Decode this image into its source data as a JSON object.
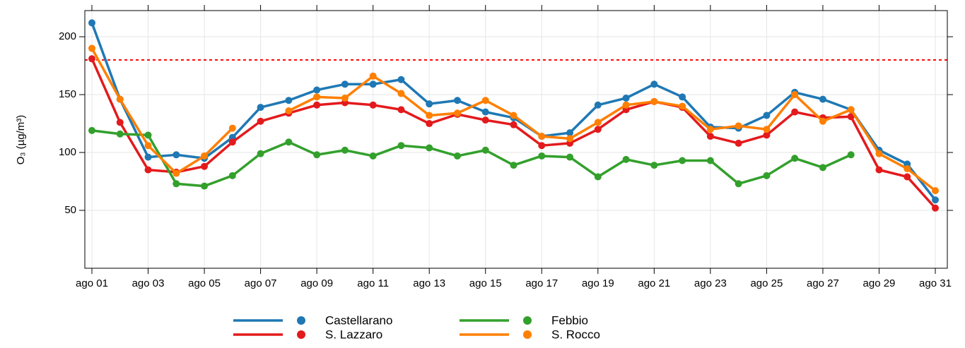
{
  "chart_data": {
    "type": "line",
    "ylabel": "O₃ (µg/m³)",
    "categories": [
      "ago 01",
      null,
      "ago 03",
      null,
      "ago 05",
      null,
      "ago 07",
      null,
      "ago 09",
      null,
      "ago 11",
      null,
      "ago 13",
      null,
      "ago 15",
      null,
      "ago 17",
      null,
      "ago 19",
      null,
      "ago 21",
      null,
      "ago 23",
      null,
      "ago 25",
      null,
      "ago 27",
      null,
      "ago 29",
      null,
      "ago 31"
    ],
    "series": [
      {
        "name": "Castellarano",
        "color": "#1f78b4",
        "values": [
          212,
          146,
          96,
          98,
          95,
          113,
          139,
          145,
          154,
          159,
          159,
          163,
          142,
          145,
          135,
          130,
          114,
          117,
          141,
          147,
          159,
          148,
          122,
          121,
          132,
          152,
          146,
          137,
          102,
          90,
          59
        ]
      },
      {
        "name": "S. Lazzaro",
        "color": "#e31a1c",
        "values": [
          181,
          126,
          85,
          83,
          88,
          109,
          127,
          134,
          141,
          143,
          141,
          137,
          125,
          133,
          128,
          124,
          106,
          108,
          120,
          137,
          144,
          139,
          114,
          108,
          115,
          135,
          130,
          131,
          85,
          79,
          52
        ]
      },
      {
        "name": "Febbio",
        "color": "#33a02c",
        "values": [
          119,
          116,
          115,
          73,
          71,
          80,
          99,
          109,
          98,
          102,
          97,
          106,
          104,
          97,
          102,
          89,
          97,
          96,
          79,
          94,
          89,
          93,
          93,
          73,
          80,
          95,
          87,
          98,
          null,
          null,
          null
        ]
      },
      {
        "name": "S. Rocco",
        "color": "#ff7f00",
        "values": [
          190,
          146,
          106,
          82,
          97,
          121,
          null,
          136,
          148,
          147,
          166,
          151,
          132,
          134,
          145,
          132,
          114,
          112,
          126,
          141,
          144,
          140,
          120,
          123,
          120,
          150,
          127,
          137,
          99,
          86,
          67
        ]
      }
    ],
    "ylim": [
      0,
      222.6
    ],
    "yticks": [
      50,
      100,
      150,
      200
    ],
    "grid": true,
    "threshold": {
      "value": 180,
      "color": "#ff0000"
    }
  }
}
